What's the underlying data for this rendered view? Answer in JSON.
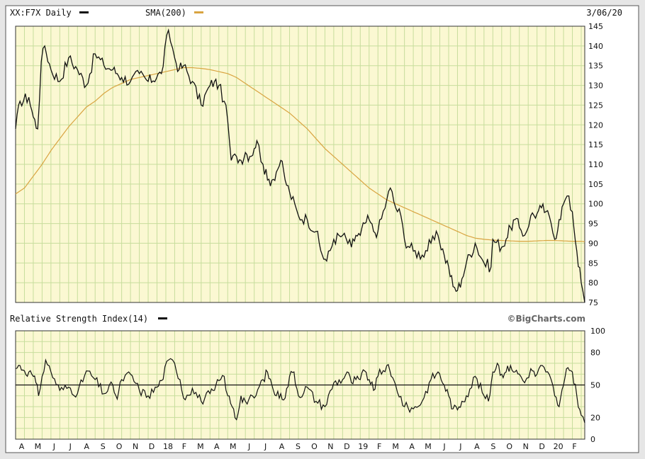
{
  "chart_data": [
    {
      "type": "line",
      "title": "XX:F7X Daily",
      "date_label": "3/06/20",
      "legend": [
        {
          "name": "XX:F7X Daily",
          "color": "#111111"
        },
        {
          "name": "SMA(200)",
          "color": "#d9a441"
        }
      ],
      "ylim": [
        75,
        145
      ],
      "y_ticks": [
        75,
        80,
        85,
        90,
        95,
        100,
        105,
        110,
        115,
        120,
        125,
        130,
        135,
        140,
        145
      ],
      "grid": true,
      "series": [
        {
          "name": "XX:F7X Daily",
          "color": "#111111",
          "anchors": [
            [
              0,
              119
            ],
            [
              0.5,
              126
            ],
            [
              1.5,
              127
            ],
            [
              2,
              122
            ],
            [
              2.5,
              119
            ],
            [
              2.9,
              136
            ],
            [
              3.3,
              140
            ],
            [
              4,
              134
            ],
            [
              5,
              131
            ],
            [
              6,
              137
            ],
            [
              7,
              134
            ],
            [
              8,
              130
            ],
            [
              9,
              138
            ],
            [
              10,
              135
            ],
            [
              11,
              134
            ],
            [
              11.5,
              133
            ],
            [
              12,
              132
            ],
            [
              13,
              131
            ],
            [
              14,
              133
            ],
            [
              15,
              131
            ],
            [
              16.5,
              133
            ],
            [
              17.3,
              144
            ],
            [
              18,
              137
            ],
            [
              18.5,
              134
            ],
            [
              19,
              135
            ],
            [
              20,
              131
            ],
            [
              21,
              125
            ],
            [
              22,
              130
            ],
            [
              22.5,
              131
            ],
            [
              23,
              130
            ],
            [
              23.6,
              126
            ],
            [
              24,
              121
            ],
            [
              24.4,
              111
            ],
            [
              25,
              112
            ],
            [
              25.5,
              111
            ],
            [
              26,
              113
            ],
            [
              26.5,
              112
            ],
            [
              27,
              114
            ],
            [
              27.3,
              116
            ],
            [
              28,
              110
            ],
            [
              28.5,
              106
            ],
            [
              29,
              106
            ],
            [
              29.5,
              108
            ],
            [
              30,
              111
            ],
            [
              30.5,
              106
            ],
            [
              31,
              103
            ],
            [
              32,
              97
            ],
            [
              33,
              96
            ],
            [
              34,
              93
            ],
            [
              34.7,
              87
            ],
            [
              35.2,
              85.5
            ],
            [
              36,
              91
            ],
            [
              37,
              92
            ],
            [
              38,
              89
            ],
            [
              38.5,
              92
            ],
            [
              39,
              92
            ],
            [
              39.5,
              95
            ],
            [
              40,
              96
            ],
            [
              40.5,
              93
            ],
            [
              41,
              93
            ],
            [
              42,
              101
            ],
            [
              42.4,
              104
            ],
            [
              43,
              99
            ],
            [
              43.6,
              97
            ],
            [
              44,
              91
            ],
            [
              45,
              88
            ],
            [
              46,
              87
            ],
            [
              47,
              90
            ],
            [
              47.8,
              92
            ],
            [
              48.5,
              87
            ],
            [
              49,
              84
            ],
            [
              49.5,
              79
            ],
            [
              50,
              78
            ],
            [
              50.5,
              81
            ],
            [
              51,
              85
            ],
            [
              52,
              90
            ],
            [
              53,
              85
            ],
            [
              53.8,
              84
            ],
            [
              54,
              91
            ],
            [
              55,
              89
            ],
            [
              55.5,
              91
            ],
            [
              56,
              94
            ],
            [
              56.5,
              96
            ],
            [
              57,
              94
            ],
            [
              57.6,
              92
            ],
            [
              58.3,
              97
            ],
            [
              59,
              97.5
            ],
            [
              59.5,
              99
            ],
            [
              60,
              98
            ],
            [
              60.6,
              95
            ],
            [
              61,
              91
            ],
            [
              61.5,
              96
            ],
            [
              62,
              100
            ],
            [
              62.4,
              102
            ],
            [
              63,
              98
            ],
            [
              63.5,
              88
            ],
            [
              64,
              80
            ],
            [
              64.4,
              75
            ]
          ]
        },
        {
          "name": "SMA(200)",
          "color": "#d9a441",
          "anchors": [
            [
              0,
              102.5
            ],
            [
              1,
              104
            ],
            [
              2,
              107
            ],
            [
              3,
              110
            ],
            [
              4,
              113.5
            ],
            [
              5,
              116.5
            ],
            [
              6,
              119.5
            ],
            [
              7,
              122
            ],
            [
              8,
              124.5
            ],
            [
              9,
              126
            ],
            [
              10,
              128
            ],
            [
              11,
              129.5
            ],
            [
              12,
              130.5
            ],
            [
              13,
              131.5
            ],
            [
              14,
              132
            ],
            [
              15,
              132.5
            ],
            [
              16,
              133
            ],
            [
              17,
              133.5
            ],
            [
              18,
              134
            ],
            [
              19,
              134.5
            ],
            [
              20,
              134.5
            ],
            [
              21,
              134.3
            ],
            [
              22,
              134
            ],
            [
              23,
              133.5
            ],
            [
              24,
              133
            ],
            [
              25,
              132
            ],
            [
              26,
              130.5
            ],
            [
              27,
              129
            ],
            [
              28,
              127.5
            ],
            [
              29,
              126
            ],
            [
              30,
              124.5
            ],
            [
              31,
              123
            ],
            [
              32,
              121
            ],
            [
              33,
              119
            ],
            [
              34,
              116.5
            ],
            [
              35,
              114
            ],
            [
              36,
              112
            ],
            [
              37,
              110
            ],
            [
              38,
              108
            ],
            [
              39,
              106
            ],
            [
              40,
              104
            ],
            [
              41,
              102.5
            ],
            [
              42,
              101
            ],
            [
              43,
              100
            ],
            [
              44,
              99
            ],
            [
              45,
              98
            ],
            [
              46,
              97
            ],
            [
              47,
              96
            ],
            [
              48,
              95
            ],
            [
              49,
              94
            ],
            [
              50,
              93
            ],
            [
              51,
              92
            ],
            [
              52,
              91.3
            ],
            [
              53,
              91
            ],
            [
              54,
              90.8
            ],
            [
              55,
              90.7
            ],
            [
              56,
              90.6
            ],
            [
              57,
              90.5
            ],
            [
              58,
              90.5
            ],
            [
              59,
              90.6
            ],
            [
              60,
              90.7
            ],
            [
              61,
              90.7
            ],
            [
              62,
              90.6
            ],
            [
              63,
              90.5
            ],
            [
              64,
              90.5
            ],
            [
              64.4,
              90.4
            ]
          ]
        }
      ]
    },
    {
      "type": "line",
      "title": "Relative Strength Index(14)",
      "ylim": [
        0,
        100
      ],
      "y_ticks": [
        0,
        20,
        50,
        80,
        100
      ],
      "reference_line": 50,
      "grid": true,
      "series": [
        {
          "name": "Relative Strength Index(14)",
          "color": "#111111",
          "anchors": [
            [
              0,
              65
            ],
            [
              0.5,
              68
            ],
            [
              1,
              63
            ],
            [
              1.5,
              62
            ],
            [
              2,
              58
            ],
            [
              2.3,
              52
            ],
            [
              2.6,
              40
            ],
            [
              3,
              58
            ],
            [
              3.4,
              73
            ],
            [
              4,
              62
            ],
            [
              5,
              45
            ],
            [
              6,
              48
            ],
            [
              7,
              42
            ],
            [
              8,
              63
            ],
            [
              9,
              55
            ],
            [
              10,
              42
            ],
            [
              11,
              50
            ],
            [
              11.5,
              37
            ],
            [
              12,
              55
            ],
            [
              13,
              60
            ],
            [
              14,
              45
            ],
            [
              15,
              40
            ],
            [
              16,
              48
            ],
            [
              16.5,
              54
            ],
            [
              17.3,
              73
            ],
            [
              18,
              70
            ],
            [
              18.6,
              55
            ],
            [
              19,
              38
            ],
            [
              20,
              47
            ],
            [
              21,
              35
            ],
            [
              22,
              42
            ],
            [
              22.5,
              45
            ],
            [
              23,
              54
            ],
            [
              23.6,
              58
            ],
            [
              24,
              40
            ],
            [
              24.5,
              30
            ],
            [
              25,
              18
            ],
            [
              25.5,
              40
            ],
            [
              26,
              35
            ],
            [
              27,
              38
            ],
            [
              28,
              55
            ],
            [
              28.5,
              62
            ],
            [
              29,
              50
            ],
            [
              29.5,
              40
            ],
            [
              30,
              42
            ],
            [
              30.5,
              38
            ],
            [
              31,
              58
            ],
            [
              31.5,
              62
            ],
            [
              32,
              40
            ],
            [
              33,
              48
            ],
            [
              34,
              35
            ],
            [
              35,
              30
            ],
            [
              36,
              52
            ],
            [
              37,
              55
            ],
            [
              37.5,
              62
            ],
            [
              38,
              52
            ],
            [
              38.5,
              55
            ],
            [
              39,
              55
            ],
            [
              39.5,
              63
            ],
            [
              40,
              55
            ],
            [
              40.5,
              45
            ],
            [
              41,
              58
            ],
            [
              42,
              68
            ],
            [
              42.5,
              58
            ],
            [
              43,
              50
            ],
            [
              44,
              30
            ],
            [
              45,
              28
            ],
            [
              46,
              35
            ],
            [
              47,
              55
            ],
            [
              47.8,
              62
            ],
            [
              48.5,
              50
            ],
            [
              49,
              40
            ],
            [
              49.5,
              28
            ],
            [
              50,
              27
            ],
            [
              50.5,
              35
            ],
            [
              51,
              40
            ],
            [
              52,
              58
            ],
            [
              53,
              40
            ],
            [
              53.5,
              35
            ],
            [
              54,
              62
            ],
            [
              54.5,
              70
            ],
            [
              55,
              60
            ],
            [
              55.5,
              62
            ],
            [
              56,
              68
            ],
            [
              56.5,
              62
            ],
            [
              57,
              60
            ],
            [
              57.6,
              52
            ],
            [
              58.3,
              65
            ],
            [
              58.8,
              58
            ],
            [
              59.4,
              68
            ],
            [
              60,
              62
            ],
            [
              60.6,
              55
            ],
            [
              61,
              40
            ],
            [
              61.5,
              30
            ],
            [
              62,
              50
            ],
            [
              62.5,
              66
            ],
            [
              63,
              62
            ],
            [
              63.5,
              40
            ],
            [
              64,
              22
            ],
            [
              64.4,
              15
            ]
          ]
        }
      ],
      "brand": "©BigCharts.com"
    }
  ],
  "x_axis": {
    "months": [
      "A",
      "M",
      "J",
      "J",
      "A",
      "S",
      "O",
      "N",
      "D",
      "18",
      "F",
      "M",
      "A",
      "M",
      "J",
      "J",
      "A",
      "S",
      "O",
      "N",
      "D",
      "19",
      "F",
      "M",
      "A",
      "M",
      "J",
      "J",
      "A",
      "S",
      "O",
      "N",
      "D",
      "20",
      "F"
    ],
    "index_range": [
      0,
      64.4
    ]
  },
  "colors": {
    "plot_bg": "#fbf8d2",
    "grid": "#c7dd9c",
    "frame": "#333333",
    "sma": "#d9a441",
    "line": "#111111"
  }
}
